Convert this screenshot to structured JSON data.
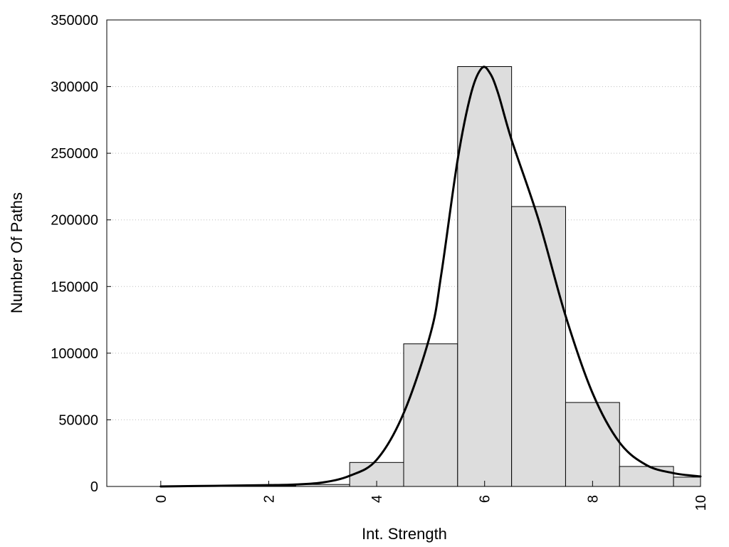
{
  "chart_data": {
    "type": "bar",
    "xlabel": "Int. Strength",
    "ylabel": "Number Of Paths",
    "xlim": [
      -1,
      10
    ],
    "ylim": [
      0,
      350000
    ],
    "grid": "horizontal dotted",
    "x_ticks": [
      "0",
      "2",
      "4",
      "6",
      "8",
      "10"
    ],
    "y_ticks": [
      "0",
      "50000",
      "100000",
      "150000",
      "200000",
      "250000",
      "300000",
      "350000"
    ],
    "bars": {
      "x": [
        0,
        1,
        2,
        3,
        4,
        5,
        6,
        7,
        8,
        9,
        10
      ],
      "values": [
        0,
        0,
        500,
        1500,
        18000,
        107000,
        315000,
        210000,
        63000,
        15000,
        7000
      ]
    },
    "fit_curve": {
      "x": [
        0,
        1,
        2,
        2.5,
        3,
        3.5,
        4,
        4.5,
        5,
        5.2,
        5.5,
        5.75,
        5.95,
        6.1,
        6.25,
        6.5,
        7,
        7.5,
        8,
        8.5,
        9,
        9.5,
        10
      ],
      "y": [
        0,
        500,
        1000,
        1500,
        3000,
        8000,
        20000,
        55000,
        115000,
        160000,
        245000,
        295000,
        314000,
        310000,
        295000,
        260000,
        200000,
        128000,
        70000,
        33000,
        16000,
        10000,
        7500
      ]
    }
  }
}
